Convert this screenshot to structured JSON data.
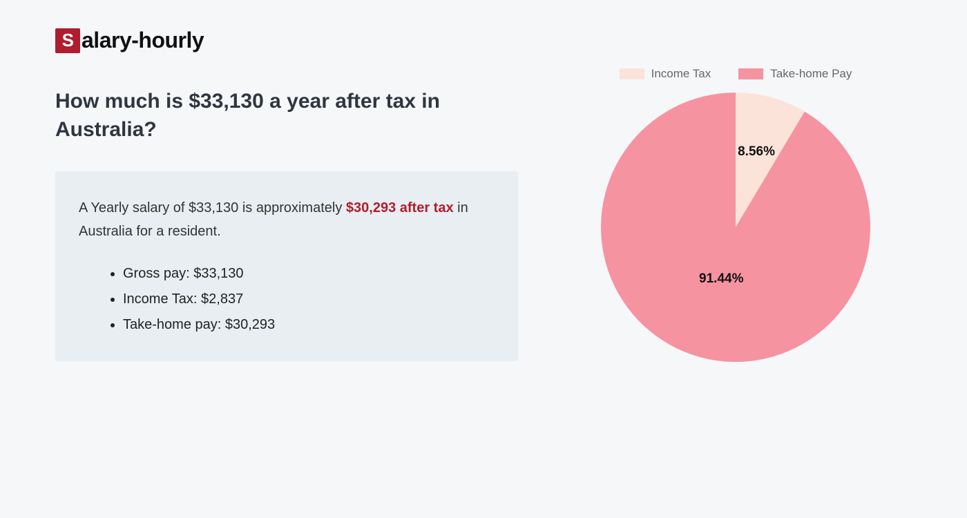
{
  "logo": {
    "badge_letter": "S",
    "rest": "alary-hourly",
    "badge_bg": "#b01d2e",
    "badge_fg": "#ffffff",
    "text_color": "#111111"
  },
  "heading": "How much is $33,130 a year after tax in Australia?",
  "summary": {
    "prefix": "A Yearly salary of $33,130 is approximately ",
    "highlight": "$30,293 after tax",
    "suffix": " in Australia for a resident.",
    "highlight_color": "#b01d2e",
    "box_bg": "#e8eef1",
    "items": [
      "Gross pay: $33,130",
      "Income Tax: $2,837",
      "Take-home pay: $30,293"
    ]
  },
  "chart": {
    "type": "pie",
    "legend": [
      {
        "label": "Income Tax",
        "color": "#fbe3da"
      },
      {
        "label": "Take-home Pay",
        "color": "#f693a1"
      }
    ],
    "slices": [
      {
        "name": "Income Tax",
        "value": 8.56,
        "label": "8.56%",
        "color": "#fbe3da"
      },
      {
        "name": "Take-home Pay",
        "value": 91.44,
        "label": "91.44%",
        "color": "#f693a1"
      }
    ],
    "radius": 195,
    "label_fontsize": 19,
    "label_fontweight": 700,
    "label_color": "#111111",
    "background_color": "#f5f7f9",
    "start_angle_deg": -90
  },
  "page_bg": "#f5f7f9"
}
